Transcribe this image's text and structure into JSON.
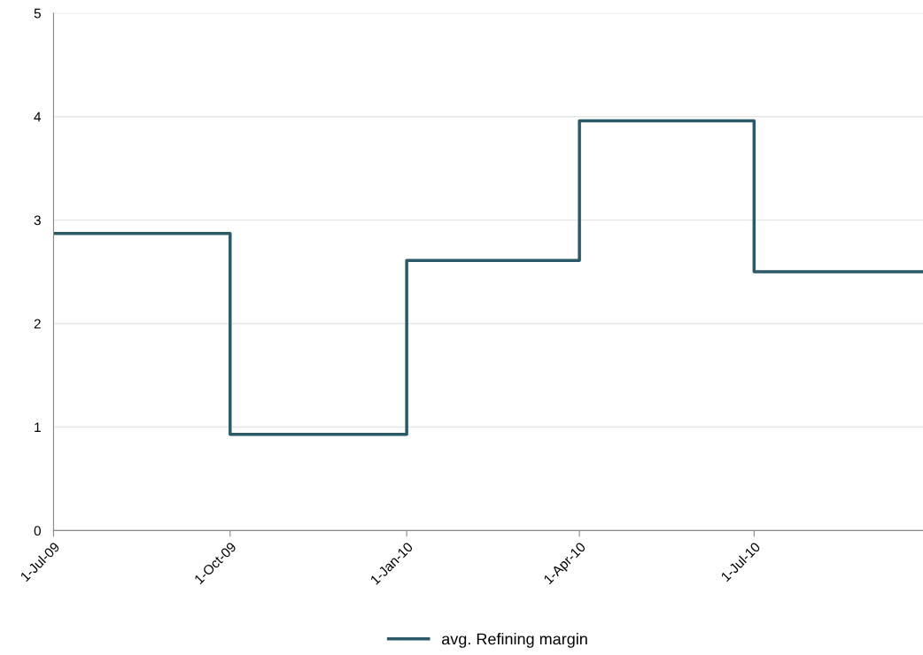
{
  "chart_data": {
    "type": "step",
    "x": [
      "2009-07-01",
      "2009-10-01",
      "2010-01-01",
      "2010-04-01",
      "2010-07-01",
      "2010-09-27"
    ],
    "series": [
      {
        "name": "avg. Refining margin",
        "color": "#2a5a68",
        "values": [
          2.87,
          0.93,
          2.61,
          3.96,
          2.5,
          2.5
        ]
      }
    ],
    "xlim": [
      "2009-07-01",
      "2010-09-27"
    ],
    "xticks": [
      {
        "value": "2009-07-01",
        "label": "1-Jul-09"
      },
      {
        "value": "2009-10-01",
        "label": "1-Oct-09"
      },
      {
        "value": "2010-01-01",
        "label": "1-Jan-10"
      },
      {
        "value": "2010-04-01",
        "label": "1-Apr-10"
      },
      {
        "value": "2010-07-01",
        "label": "1-Jul-10"
      }
    ],
    "ylim": [
      0,
      5
    ],
    "yticks": [
      0,
      1,
      2,
      3,
      4,
      5
    ],
    "grid": "y",
    "legend": "bottom",
    "line_style": "solid",
    "marker": "none"
  }
}
